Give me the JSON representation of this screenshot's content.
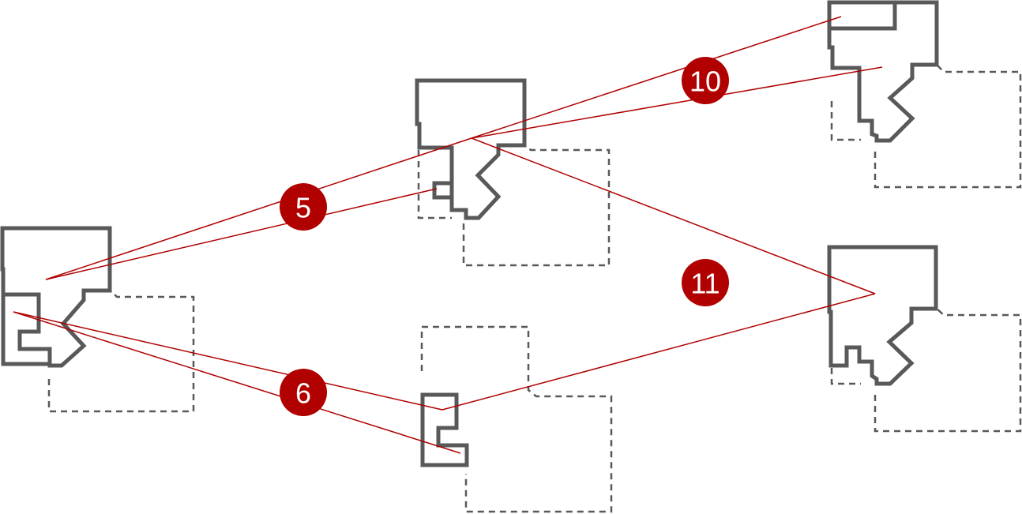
{
  "diagram": {
    "description_free": true,
    "badges": [
      {
        "id": "badge-5",
        "label": "5"
      },
      {
        "id": "badge-6",
        "label": "6"
      },
      {
        "id": "badge-10",
        "label": "10"
      },
      {
        "id": "badge-11",
        "label": "11"
      }
    ],
    "colors": {
      "outline": "#595959",
      "connector": "#b00000",
      "badge_fill": "#b00000",
      "badge_text": "#ffffff"
    }
  }
}
